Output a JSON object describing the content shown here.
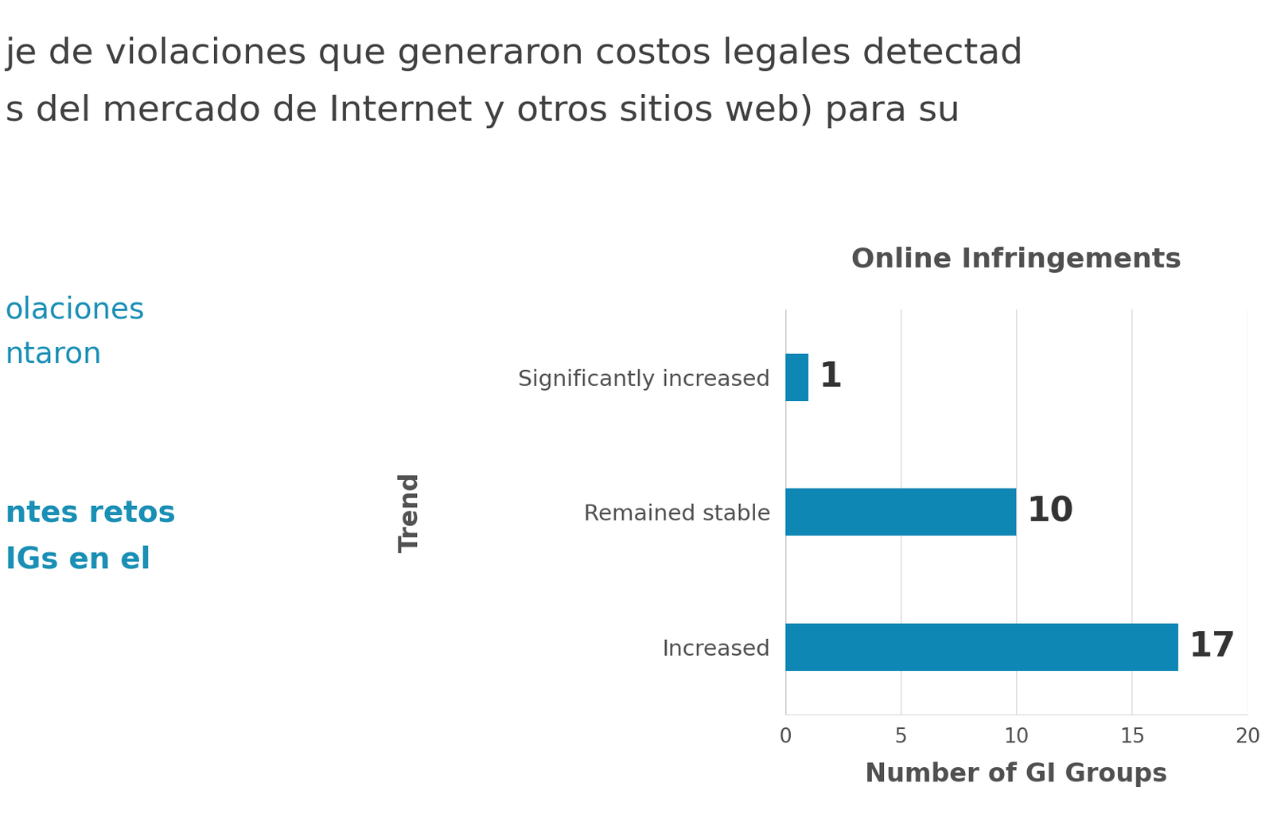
{
  "header": {
    "lines": [
      "je de violaciones que generaron costos legales detectad",
      "s del mercado de Internet y otros sitios web) para su"
    ]
  },
  "side_texts": [
    {
      "text": "olaciones",
      "bold": false
    },
    {
      "text": "ntaron",
      "bold": false
    },
    {
      "text": "ntes retos",
      "bold": true
    },
    {
      "text": "IGs en el",
      "bold": true
    }
  ],
  "chart_data": {
    "type": "bar",
    "orientation": "horizontal",
    "title": "Online Infringements",
    "categories": [
      "Significantly increased",
      "Remained stable",
      "Increased"
    ],
    "values": [
      1,
      10,
      17
    ],
    "color": "#0e87b4",
    "x_label": "Number of GI Groups",
    "y_label": "Trend",
    "xlim": [
      0,
      20
    ],
    "xticks": [
      0,
      5,
      10,
      15,
      20
    ],
    "grid": true,
    "data_labels": true
  }
}
